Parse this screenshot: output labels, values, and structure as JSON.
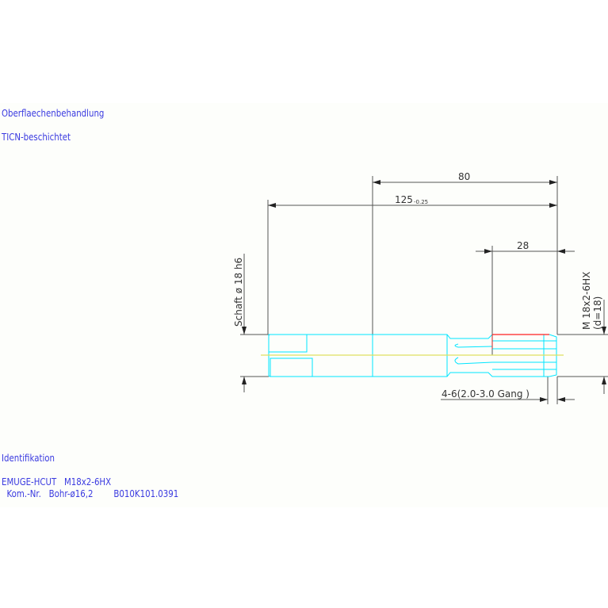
{
  "notes": {
    "surface_heading": "Oberflaechenbehandlung",
    "surface_value": "TICN-beschichtet",
    "id_heading": "Identifikation",
    "id_line1": "EMUGE-HCUT   M18x2-6HX",
    "id_line2": "  Kom.-Nr.   Bohr-ø16,2        B010K101.0391"
  },
  "dimensions": {
    "length_80": "80",
    "length_125": "125",
    "length_125_tol": "-0.25",
    "length_28": "28",
    "shank": "Schaft ø 18  h6",
    "thread": "M 18x2-6HX",
    "thread_d": "(d=18)",
    "chamfer": "4-6(2.0-3.0 Gang  )"
  },
  "colors": {
    "text": "#3a3ae0",
    "tool_outline": "#00e5ff",
    "centerline": "#e0e060",
    "thread_edge": "#ff2020",
    "dim": "#444444"
  }
}
